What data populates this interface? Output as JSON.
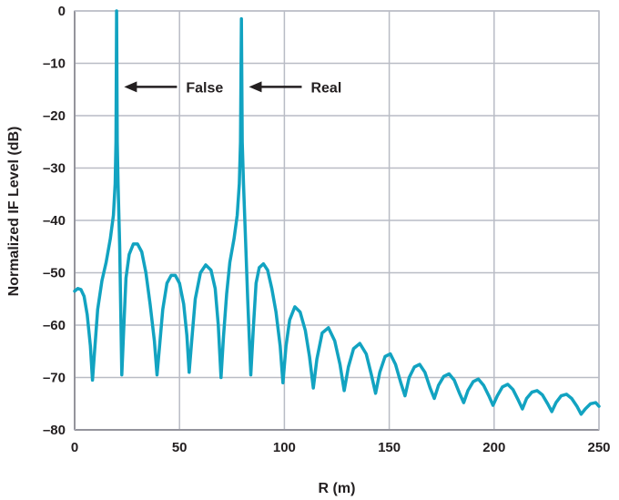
{
  "chart_data": {
    "type": "line",
    "title": "",
    "xlabel": "R (m)",
    "ylabel": "Normalized IF Level (dB)",
    "xlim": [
      0,
      250
    ],
    "ylim": [
      -80,
      0
    ],
    "xticks": [
      0,
      50,
      100,
      150,
      200,
      250
    ],
    "xtick_labels": [
      "0",
      "50",
      "100",
      "150",
      "200",
      "250"
    ],
    "yticks": [
      0,
      -10,
      -20,
      -30,
      -40,
      -50,
      -60,
      -70,
      -80
    ],
    "ytick_labels": [
      "0",
      "–10",
      "–20",
      "–30",
      "–40",
      "–50",
      "–60",
      "–70",
      "–80"
    ],
    "grid": true,
    "line_color": "#12a3c1",
    "grid_color": "#b9bcc5",
    "axis_color": "#231f20",
    "series": [
      {
        "points": [
          [
            0,
            -53.5
          ],
          [
            1.5,
            -53
          ],
          [
            3,
            -53.2
          ],
          [
            4.5,
            -54.5
          ],
          [
            6,
            -58
          ],
          [
            7.5,
            -64
          ],
          [
            8.5,
            -70.5
          ],
          [
            9.5,
            -65
          ],
          [
            11,
            -57
          ],
          [
            13,
            -51.5
          ],
          [
            15,
            -48
          ],
          [
            17,
            -43.5
          ],
          [
            18.5,
            -39
          ],
          [
            19.3,
            -33
          ],
          [
            19.7,
            -25
          ],
          [
            20,
            0
          ],
          [
            20.3,
            -25
          ],
          [
            20.7,
            -33
          ],
          [
            21.5,
            -45
          ],
          [
            22.5,
            -69.5
          ],
          [
            23.5,
            -60
          ],
          [
            24.5,
            -51
          ],
          [
            26,
            -46.5
          ],
          [
            28,
            -44.5
          ],
          [
            30,
            -44.5
          ],
          [
            32,
            -46
          ],
          [
            34,
            -50
          ],
          [
            36,
            -56
          ],
          [
            38,
            -63
          ],
          [
            39.3,
            -69.5
          ],
          [
            40.5,
            -64
          ],
          [
            42,
            -57
          ],
          [
            44,
            -52
          ],
          [
            46,
            -50.5
          ],
          [
            48,
            -50.5
          ],
          [
            50,
            -52
          ],
          [
            52,
            -56
          ],
          [
            53.5,
            -62
          ],
          [
            54.6,
            -69
          ],
          [
            55.8,
            -63
          ],
          [
            57.5,
            -55
          ],
          [
            60,
            -50
          ],
          [
            62.5,
            -48.5
          ],
          [
            65,
            -49.5
          ],
          [
            67,
            -53
          ],
          [
            68.5,
            -60
          ],
          [
            69.8,
            -70
          ],
          [
            71,
            -62
          ],
          [
            72.5,
            -54
          ],
          [
            74,
            -48
          ],
          [
            76,
            -43.5
          ],
          [
            77.5,
            -39
          ],
          [
            78.5,
            -33
          ],
          [
            79.1,
            -25
          ],
          [
            79.5,
            -1.5
          ],
          [
            79.9,
            -25
          ],
          [
            80.5,
            -33
          ],
          [
            81.5,
            -44
          ],
          [
            82.5,
            -55
          ],
          [
            84,
            -69.5
          ],
          [
            85.3,
            -60
          ],
          [
            86.5,
            -52
          ],
          [
            88,
            -49
          ],
          [
            90,
            -48.3
          ],
          [
            92,
            -49.5
          ],
          [
            94,
            -53
          ],
          [
            96,
            -57.5
          ],
          [
            98,
            -64
          ],
          [
            99.3,
            -71
          ],
          [
            100.8,
            -64
          ],
          [
            102.5,
            -59
          ],
          [
            105,
            -56.5
          ],
          [
            107.5,
            -57.5
          ],
          [
            110,
            -61
          ],
          [
            112,
            -66
          ],
          [
            113.8,
            -72
          ],
          [
            115.5,
            -66.5
          ],
          [
            118,
            -61.5
          ],
          [
            121,
            -60.5
          ],
          [
            124,
            -63
          ],
          [
            126.5,
            -67.5
          ],
          [
            128.5,
            -72.5
          ],
          [
            130.5,
            -68
          ],
          [
            133,
            -64.5
          ],
          [
            136,
            -63.5
          ],
          [
            139,
            -65.5
          ],
          [
            141.5,
            -69.5
          ],
          [
            143.5,
            -73
          ],
          [
            145.5,
            -69
          ],
          [
            148,
            -66
          ],
          [
            150.5,
            -65.5
          ],
          [
            153,
            -67.5
          ],
          [
            155.5,
            -71
          ],
          [
            157.5,
            -73.5
          ],
          [
            159.5,
            -70
          ],
          [
            162,
            -68
          ],
          [
            164.5,
            -67.5
          ],
          [
            167,
            -69
          ],
          [
            169.5,
            -72
          ],
          [
            171.5,
            -74
          ],
          [
            173.5,
            -71.5
          ],
          [
            176,
            -69.8
          ],
          [
            178.5,
            -69.3
          ],
          [
            181,
            -70.5
          ],
          [
            183.5,
            -73
          ],
          [
            185.5,
            -74.8
          ],
          [
            187.5,
            -72.5
          ],
          [
            190,
            -70.8
          ],
          [
            192.5,
            -70.3
          ],
          [
            195,
            -71.5
          ],
          [
            197.5,
            -73.5
          ],
          [
            199.5,
            -75.3
          ],
          [
            201.5,
            -73.5
          ],
          [
            204,
            -71.8
          ],
          [
            206.5,
            -71.3
          ],
          [
            209,
            -72.3
          ],
          [
            211.5,
            -74.3
          ],
          [
            213.5,
            -76
          ],
          [
            215.5,
            -74
          ],
          [
            218,
            -72.8
          ],
          [
            220.5,
            -72.5
          ],
          [
            223,
            -73.3
          ],
          [
            225.5,
            -75
          ],
          [
            227.5,
            -76.5
          ],
          [
            229.5,
            -74.8
          ],
          [
            232,
            -73.5
          ],
          [
            234.5,
            -73.2
          ],
          [
            237,
            -74
          ],
          [
            239.5,
            -75.5
          ],
          [
            241.5,
            -77
          ],
          [
            243.5,
            -76
          ],
          [
            246,
            -75
          ],
          [
            248.5,
            -74.8
          ],
          [
            250,
            -75.5
          ]
        ]
      }
    ],
    "annotations": [
      {
        "text": "False",
        "arrow_to": [
          21,
          -14.5
        ]
      },
      {
        "text": "Real",
        "arrow_to": [
          80.5,
          -14.5
        ]
      }
    ]
  }
}
